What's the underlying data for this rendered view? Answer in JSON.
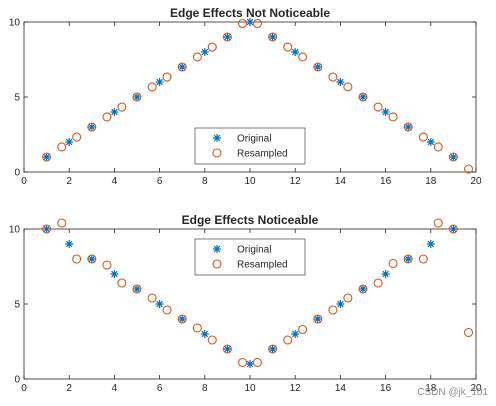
{
  "chart_data": [
    {
      "type": "scatter",
      "title": "Edge Effects Not Noticeable",
      "xlim": [
        0,
        20
      ],
      "ylim": [
        0,
        10
      ],
      "xticks": [
        "0",
        "2",
        "4",
        "6",
        "8",
        "10",
        "12",
        "14",
        "16",
        "18",
        "20"
      ],
      "yticks": [
        "0",
        "5",
        "10"
      ],
      "legend_placement": "bottom-center",
      "series": [
        {
          "name": "Original",
          "marker": "asterisk",
          "color": "#0072BD",
          "x": [
            1,
            2,
            3,
            4,
            5,
            6,
            7,
            8,
            9,
            10,
            11,
            12,
            13,
            14,
            15,
            16,
            17,
            18,
            19
          ],
          "y": [
            1,
            2,
            3,
            4,
            5,
            6,
            7,
            8,
            9,
            10,
            9,
            8,
            7,
            6,
            5,
            4,
            3,
            2,
            1
          ]
        },
        {
          "name": "Resampled",
          "marker": "circle",
          "color": "#D95319",
          "x": [
            1,
            1.67,
            2.33,
            3,
            3.67,
            4.33,
            5,
            5.67,
            6.33,
            7,
            7.67,
            8.33,
            9,
            9.67,
            10.33,
            11,
            11.67,
            12.33,
            13,
            13.67,
            14.33,
            15,
            15.67,
            16.33,
            17,
            17.67,
            18.33,
            19,
            19.67
          ],
          "y": [
            1,
            1.67,
            2.33,
            3,
            3.67,
            4.33,
            5,
            5.67,
            6.33,
            7,
            7.67,
            8.33,
            9,
            9.9,
            9.9,
            9,
            8.33,
            7.67,
            7,
            6.33,
            5.67,
            5,
            4.33,
            3.67,
            3,
            2.33,
            1.67,
            1,
            0.2
          ]
        }
      ]
    },
    {
      "type": "scatter",
      "title": "Edge Effects Noticeable",
      "xlim": [
        0,
        20
      ],
      "ylim": [
        0,
        10
      ],
      "xticks": [
        "0",
        "2",
        "4",
        "6",
        "8",
        "10",
        "12",
        "14",
        "16",
        "18",
        "20"
      ],
      "yticks": [
        "0",
        "5",
        "10"
      ],
      "legend_placement": "top-center",
      "series": [
        {
          "name": "Original",
          "marker": "asterisk",
          "color": "#0072BD",
          "x": [
            1,
            2,
            3,
            4,
            5,
            6,
            7,
            8,
            9,
            10,
            11,
            12,
            13,
            14,
            15,
            16,
            17,
            18,
            19
          ],
          "y": [
            10,
            9,
            8,
            7,
            6,
            5,
            4,
            3,
            2,
            1,
            2,
            3,
            4,
            5,
            6,
            7,
            8,
            9,
            10
          ]
        },
        {
          "name": "Resampled",
          "marker": "circle",
          "color": "#D95319",
          "x": [
            1,
            1.67,
            2.33,
            3,
            3.67,
            4.33,
            5,
            5.67,
            6.33,
            7,
            7.67,
            8.33,
            9,
            9.67,
            10.33,
            11,
            11.67,
            12.33,
            13,
            13.67,
            14.33,
            15,
            15.67,
            16.33,
            17,
            17.67,
            18.33,
            19,
            19.67
          ],
          "y": [
            10,
            10.4,
            8,
            8,
            7.6,
            6.4,
            6,
            5.4,
            4.6,
            4,
            3.4,
            2.6,
            2,
            1.1,
            1.1,
            2,
            2.6,
            3.3,
            4,
            4.6,
            5.4,
            6,
            6.4,
            7.7,
            8,
            8,
            10.4,
            10,
            3.1
          ]
        }
      ]
    }
  ],
  "watermark": "CSDN @jk_101"
}
